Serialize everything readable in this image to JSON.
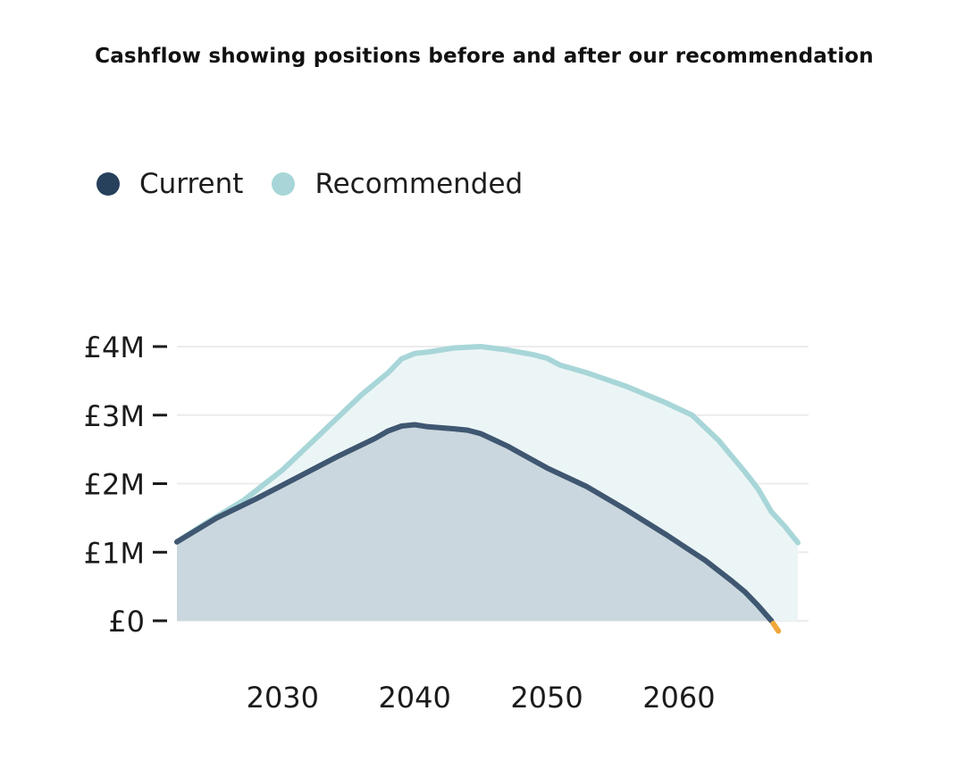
{
  "chart_data": {
    "type": "area",
    "title": "Cashflow showing positions before and after our recommendation",
    "xlabel": "",
    "ylabel": "",
    "xlim": [
      2022,
      2069
    ],
    "ylim": [
      0,
      4000000
    ],
    "x_ticks": [
      2030,
      2040,
      2050,
      2060
    ],
    "y_ticks": [
      {
        "value": 0,
        "label": "£0"
      },
      {
        "value": 1000000,
        "label": "£1M"
      },
      {
        "value": 2000000,
        "label": "£2M"
      },
      {
        "value": 3000000,
        "label": "£3M"
      },
      {
        "value": 4000000,
        "label": "£4M"
      }
    ],
    "grid": true,
    "legend": "top-left",
    "series": [
      {
        "name": "Recommended",
        "color": "#a8d6d8",
        "fill": "#ecf5f6",
        "points": [
          [
            2022,
            1150000
          ],
          [
            2024,
            1400000
          ],
          [
            2027,
            1750000
          ],
          [
            2030,
            2200000
          ],
          [
            2033,
            2750000
          ],
          [
            2036,
            3300000
          ],
          [
            2038,
            3620000
          ],
          [
            2039,
            3820000
          ],
          [
            2040,
            3900000
          ],
          [
            2041,
            3920000
          ],
          [
            2043,
            3980000
          ],
          [
            2045,
            4000000
          ],
          [
            2047,
            3950000
          ],
          [
            2049,
            3880000
          ],
          [
            2050,
            3830000
          ],
          [
            2051,
            3730000
          ],
          [
            2053,
            3620000
          ],
          [
            2056,
            3420000
          ],
          [
            2059,
            3180000
          ],
          [
            2061,
            3000000
          ],
          [
            2063,
            2630000
          ],
          [
            2065,
            2170000
          ],
          [
            2066,
            1920000
          ],
          [
            2067,
            1590000
          ],
          [
            2068,
            1380000
          ],
          [
            2069,
            1140000
          ]
        ]
      },
      {
        "name": "Current",
        "color": "#3f5771",
        "fill": "#cad7de",
        "points": [
          [
            2022,
            1150000
          ],
          [
            2025,
            1500000
          ],
          [
            2028,
            1780000
          ],
          [
            2031,
            2080000
          ],
          [
            2034,
            2380000
          ],
          [
            2037,
            2660000
          ],
          [
            2038,
            2770000
          ],
          [
            2039,
            2840000
          ],
          [
            2040,
            2860000
          ],
          [
            2041,
            2830000
          ],
          [
            2043,
            2800000
          ],
          [
            2044,
            2780000
          ],
          [
            2045,
            2730000
          ],
          [
            2047,
            2550000
          ],
          [
            2050,
            2230000
          ],
          [
            2053,
            1960000
          ],
          [
            2056,
            1620000
          ],
          [
            2059,
            1260000
          ],
          [
            2062,
            880000
          ],
          [
            2064,
            580000
          ],
          [
            2065,
            420000
          ],
          [
            2066,
            220000
          ],
          [
            2067,
            0
          ]
        ]
      }
    ],
    "depletion_marker": {
      "color": "#f0a83a",
      "points": [
        [
          2067,
          0
        ],
        [
          2068,
          -150000
        ]
      ]
    }
  },
  "legend": {
    "items": [
      {
        "label": "Current",
        "color": "#27405c"
      },
      {
        "label": "Recommended",
        "color": "#a8d6d8"
      }
    ]
  }
}
